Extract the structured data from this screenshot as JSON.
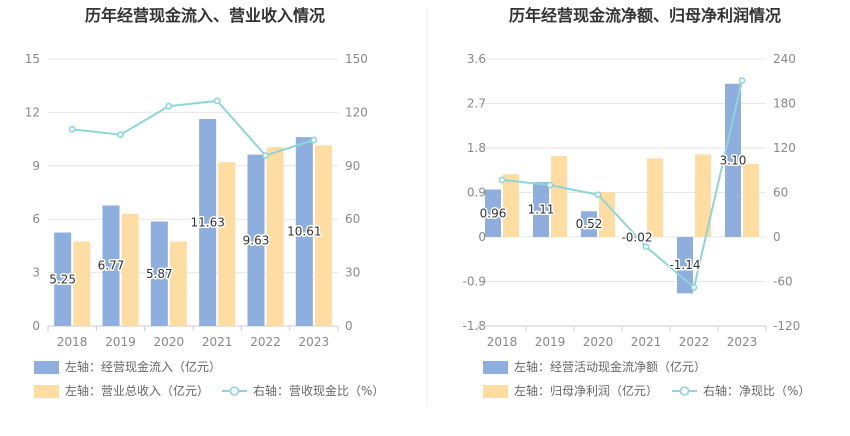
{
  "colors": {
    "bar_primary": "#8eaede",
    "bar_secondary": "#fedca2",
    "line": "#8dd5d8",
    "grid": "#e6e6e6",
    "axis": "#cccccc",
    "divider": "#e8e8e8"
  },
  "chart_data": [
    {
      "type": "bar",
      "title": "历年经营现金流入、营业收入情况",
      "categories": [
        "2018",
        "2019",
        "2020",
        "2021",
        "2022",
        "2023"
      ],
      "left_axis": {
        "min": 0,
        "max": 15,
        "ticks": [
          "0",
          "3",
          "6",
          "9",
          "12",
          "15"
        ]
      },
      "right_axis": {
        "min": 0,
        "max": 150,
        "ticks": [
          "0",
          "30",
          "60",
          "90",
          "120",
          "150"
        ]
      },
      "grid": true,
      "legend_position": "bottom-left",
      "series": [
        {
          "name": "左轴：经营现金流入（亿元）",
          "kind": "bar",
          "axis": "left",
          "values": [
            5.25,
            6.77,
            5.87,
            11.63,
            9.63,
            10.61
          ],
          "labels": [
            "5.25",
            "6.77",
            "5.87",
            "11.63",
            "9.63",
            "10.61"
          ]
        },
        {
          "name": "左轴：营业总收入（亿元）",
          "kind": "bar",
          "axis": "left",
          "values": [
            4.75,
            6.3,
            4.75,
            9.2,
            10.05,
            10.15
          ]
        },
        {
          "name": "右轴：营收现金比（%）",
          "kind": "line",
          "axis": "right",
          "values": [
            110.5,
            107.5,
            123.5,
            126.5,
            95.8,
            104.5
          ]
        }
      ]
    },
    {
      "type": "bar",
      "title": "历年经营现金流净额、归母净利润情况",
      "categories": [
        "2018",
        "2019",
        "2020",
        "2021",
        "2022",
        "2023"
      ],
      "left_axis": {
        "min": -1.8,
        "max": 3.6,
        "ticks": [
          "-1.8",
          "-0.9",
          "0",
          "0.9",
          "1.8",
          "2.7",
          "3.6"
        ]
      },
      "right_axis": {
        "min": -120,
        "max": 240,
        "ticks": [
          "-120",
          "-60",
          "0",
          "60",
          "120",
          "180",
          "240"
        ]
      },
      "grid": true,
      "legend_position": "bottom-left",
      "series": [
        {
          "name": "左轴：经营活动现金流净额（亿元）",
          "kind": "bar",
          "axis": "left",
          "values": [
            0.96,
            1.11,
            0.52,
            -0.02,
            -1.14,
            3.1
          ],
          "labels": [
            "0.96",
            "1.11",
            "0.52",
            "-0.02",
            "-1.14",
            "3.10"
          ]
        },
        {
          "name": "左轴：归母净利润（亿元）",
          "kind": "bar",
          "axis": "left",
          "values": [
            1.27,
            1.64,
            0.91,
            1.59,
            1.67,
            1.48
          ]
        },
        {
          "name": "右轴：净现比（%）",
          "kind": "line",
          "axis": "right",
          "values": [
            77,
            70,
            57,
            -13,
            -68,
            211
          ]
        }
      ]
    }
  ]
}
